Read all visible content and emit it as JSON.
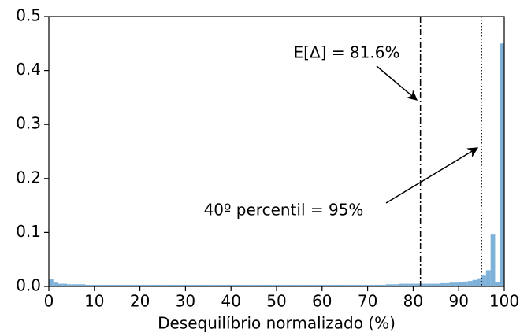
{
  "chart_data": {
    "type": "histogram",
    "xlabel": "Desequilíbrio normalizado (%)",
    "color": "#7fb2d8",
    "bins": [
      0,
      1,
      2,
      3,
      4,
      5,
      6,
      7,
      8,
      9,
      10,
      11,
      12,
      13,
      14,
      15,
      16,
      17,
      18,
      19,
      20,
      21,
      22,
      23,
      24,
      25,
      26,
      27,
      28,
      29,
      30,
      31,
      32,
      33,
      34,
      35,
      36,
      37,
      38,
      39,
      40,
      41,
      42,
      43,
      44,
      45,
      46,
      47,
      48,
      49,
      50,
      51,
      52,
      53,
      54,
      55,
      56,
      57,
      58,
      59,
      60,
      61,
      62,
      63,
      64,
      65,
      66,
      67,
      68,
      69,
      70,
      71,
      72,
      73,
      74,
      75,
      76,
      77,
      78,
      79,
      80,
      81,
      82,
      83,
      84,
      85,
      86,
      87,
      88,
      89,
      90,
      91,
      92,
      93,
      94,
      95,
      96,
      97,
      98,
      99,
      100
    ],
    "values": [
      0.013,
      0.007,
      0.005,
      0.005,
      0.004,
      0.004,
      0.004,
      0.004,
      0.003,
      0.003,
      0.003,
      0.003,
      0.003,
      0.003,
      0.003,
      0.003,
      0.003,
      0.003,
      0.003,
      0.003,
      0.003,
      0.003,
      0.003,
      0.003,
      0.003,
      0.003,
      0.003,
      0.003,
      0.003,
      0.003,
      0.003,
      0.003,
      0.003,
      0.003,
      0.003,
      0.003,
      0.003,
      0.003,
      0.003,
      0.003,
      0.003,
      0.003,
      0.003,
      0.003,
      0.003,
      0.003,
      0.003,
      0.003,
      0.003,
      0.003,
      0.003,
      0.003,
      0.003,
      0.003,
      0.003,
      0.003,
      0.003,
      0.003,
      0.003,
      0.003,
      0.003,
      0.003,
      0.003,
      0.003,
      0.003,
      0.003,
      0.003,
      0.003,
      0.003,
      0.003,
      0.003,
      0.003,
      0.003,
      0.003,
      0.004,
      0.004,
      0.004,
      0.005,
      0.005,
      0.005,
      0.005,
      0.005,
      0.005,
      0.005,
      0.005,
      0.005,
      0.006,
      0.006,
      0.007,
      0.007,
      0.008,
      0.009,
      0.01,
      0.012,
      0.015,
      0.02,
      0.03,
      0.096,
      0.008,
      0.45
    ],
    "xlim": [
      0,
      100
    ],
    "xticks": [
      0,
      10,
      20,
      30,
      40,
      50,
      60,
      70,
      80,
      90,
      100
    ],
    "ylim": [
      0,
      0.5
    ],
    "yticks": [
      {
        "value": 0,
        "label": "0.0"
      },
      0.1,
      0.2,
      0.3,
      0.4,
      0.5
    ],
    "grid": false,
    "vlines": [
      {
        "value": 81.6,
        "style": "dashdot"
      },
      {
        "value": 95,
        "style": "dotted"
      }
    ],
    "annotations": [
      {
        "text": "E[Δ] = 81.6%"
      },
      {
        "text": "40º percentil = 95%"
      }
    ]
  }
}
